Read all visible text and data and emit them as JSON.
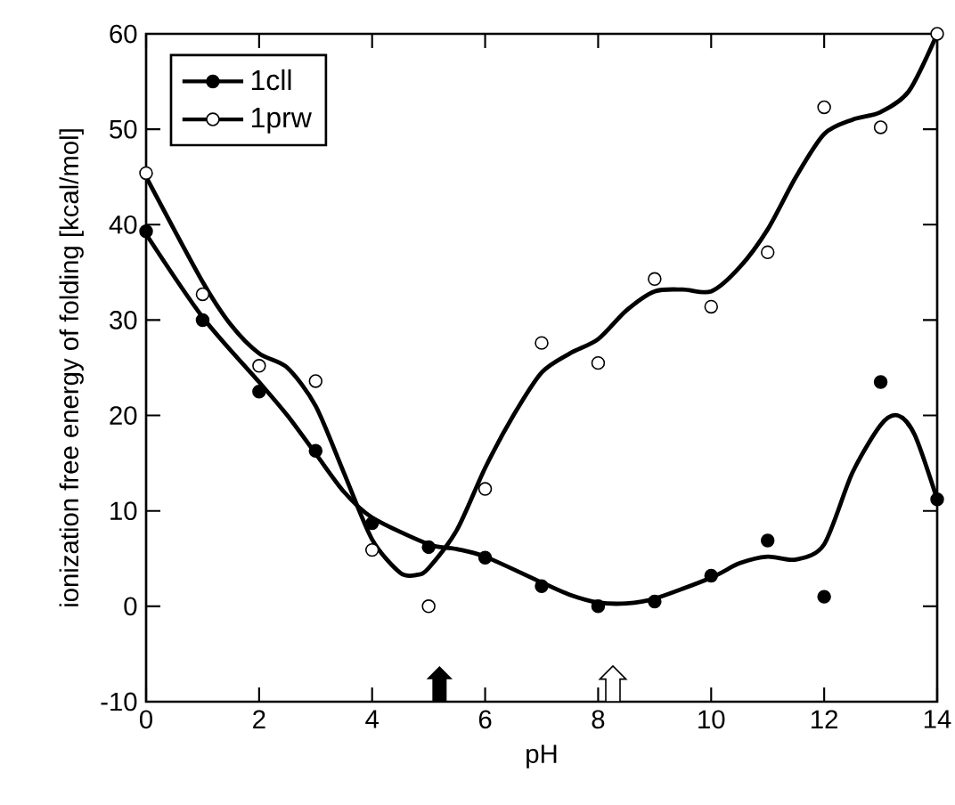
{
  "chart_data": {
    "type": "scatter",
    "xlabel": "pH",
    "ylabel": "ionization free energy of folding [kcal/mol]",
    "x": [
      0,
      1,
      2,
      3,
      4,
      5,
      6,
      7,
      8,
      9,
      10,
      11,
      12,
      13,
      14
    ],
    "series": [
      {
        "name": "1cll",
        "color": "#000000",
        "marker": "circle",
        "values": [
          39.3,
          30,
          22.5,
          16.3,
          8.7,
          6.2,
          5.1,
          2.1,
          0,
          0.5,
          3.2,
          6.9,
          1,
          23.5,
          11.2
        ]
      },
      {
        "name": "1prw",
        "color": "#ffffff",
        "marker": "circle",
        "values": [
          45.4,
          32.7,
          25.2,
          23.6,
          5.9,
          0,
          12.3,
          27.6,
          25.5,
          34.3,
          31.4,
          37.1,
          52.3,
          50.2,
          60
        ]
      },
      {
        "type": "line",
        "color": "#000000",
        "marker": "none",
        "x": [
          0,
          1,
          2,
          2.5,
          3,
          3.5,
          4,
          5,
          5.5,
          6,
          7,
          7.5,
          8,
          8.5,
          9,
          10,
          10.5,
          11,
          11.5,
          12,
          12.5,
          13,
          13.3,
          13.6,
          14
        ],
        "values": [
          39,
          30.3,
          23.5,
          20,
          16,
          12,
          9.3,
          6.5,
          6,
          5.2,
          2.5,
          1.2,
          0.4,
          0.3,
          0.8,
          3,
          4.5,
          5.2,
          4.9,
          6.5,
          14,
          19,
          20,
          18,
          11.2
        ]
      },
      {
        "type": "line",
        "color": "#000000",
        "marker": "none",
        "x": [
          0,
          1,
          1.5,
          2,
          2.5,
          3,
          3.5,
          4,
          4.5,
          4.8,
          5,
          5.5,
          6,
          6.5,
          7,
          7.5,
          8,
          8.5,
          9,
          9.5,
          10,
          10.5,
          11,
          11.5,
          12,
          12.5,
          13,
          13.5,
          14
        ],
        "values": [
          45,
          34,
          29.5,
          26.5,
          25,
          21,
          14,
          7,
          3.5,
          3.3,
          4,
          8,
          14.5,
          20,
          24.5,
          26.5,
          28,
          31,
          33,
          33.2,
          33,
          35.5,
          39.5,
          45,
          49.5,
          51,
          51.8,
          54,
          60
        ]
      }
    ],
    "xlim": [
      0,
      14
    ],
    "xticks": [
      0,
      2,
      4,
      6,
      8,
      10,
      12,
      14
    ],
    "ylim": [
      -10,
      60
    ],
    "yticks": [
      -10,
      0,
      10,
      20,
      30,
      40,
      50,
      60
    ],
    "legend": "top left"
  }
}
